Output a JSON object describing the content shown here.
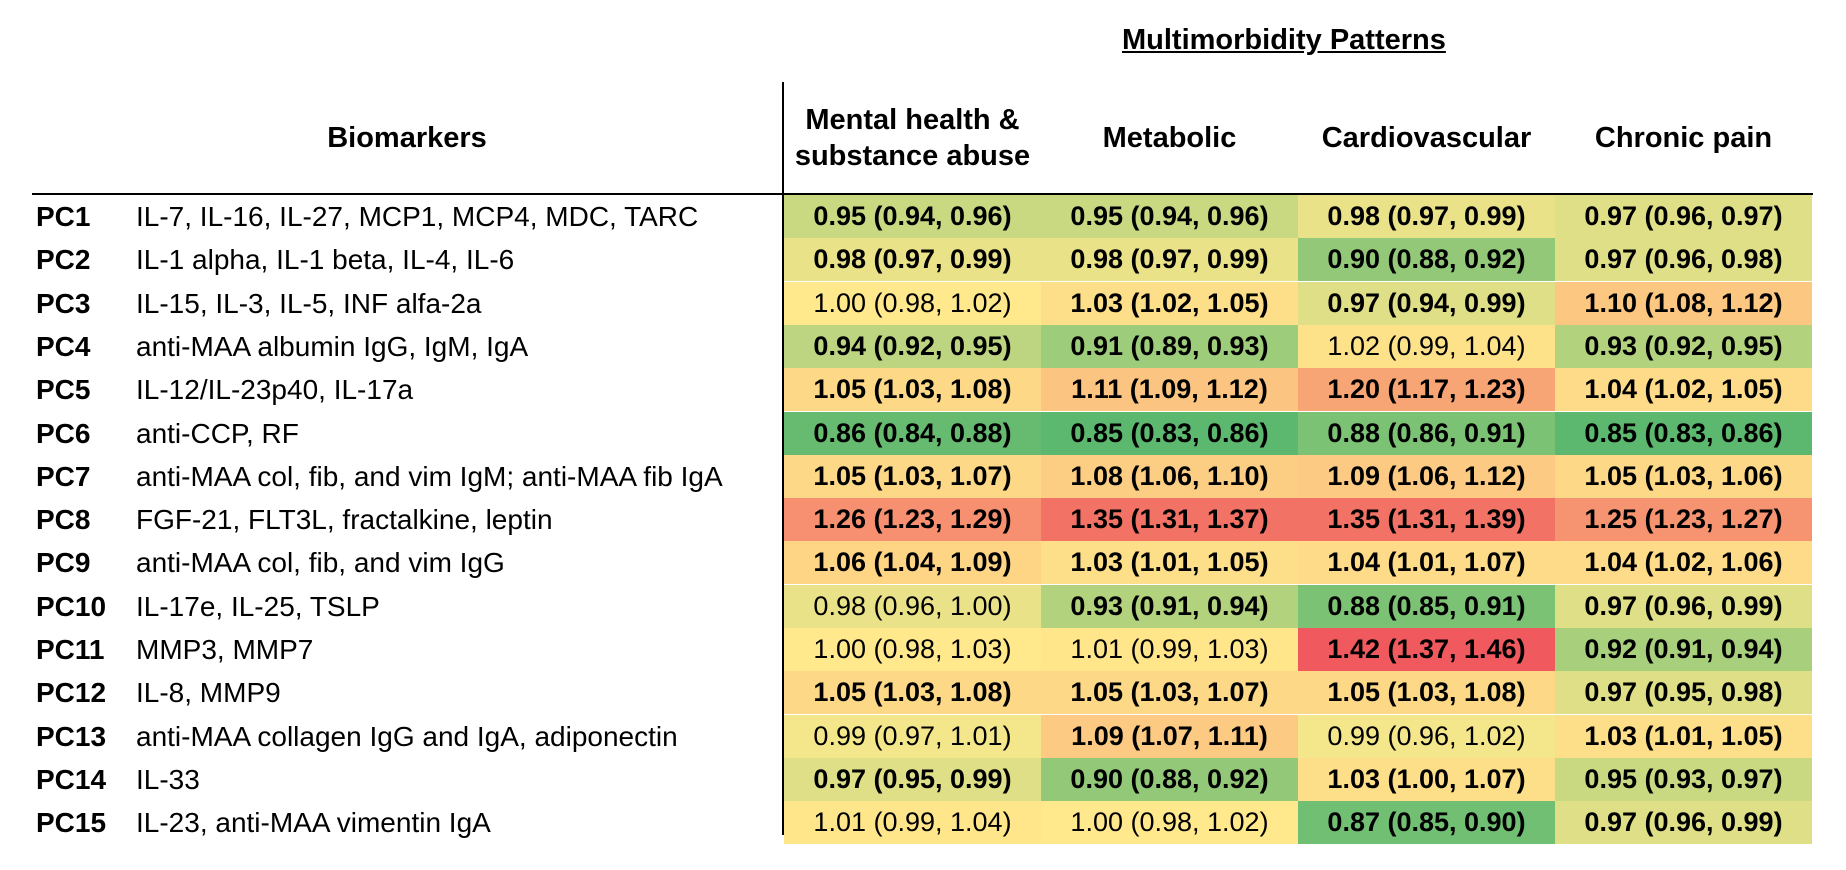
{
  "chart_data": {
    "type": "heatmap",
    "title": "Multimorbidity Patterns",
    "row_header": "Biomarkers",
    "columns": [
      "Mental health & substance abuse",
      "Metabolic",
      "Cardiovascular",
      "Chronic pain"
    ],
    "column_lines": [
      [
        "Mental health &",
        "substance abuse"
      ],
      [
        "Metabolic"
      ],
      [
        "Cardiovascular"
      ],
      [
        "Chronic pain"
      ]
    ],
    "color_scale": {
      "low": "#5bb86e",
      "mid": "#ffe98c",
      "high": "#f05a5e",
      "min_value": 0.85,
      "mid_value": 1.0,
      "max_value": 1.42
    },
    "rows": [
      {
        "pc": "PC1",
        "biomarkers": "IL-7, IL-16, IL-27, MCP1, MCP4, MDC, TARC",
        "cells": [
          {
            "text": "0.95 (0.94, 0.96)",
            "value": 0.95,
            "significant": true
          },
          {
            "text": "0.95 (0.94, 0.96)",
            "value": 0.95,
            "significant": true
          },
          {
            "text": "0.98 (0.97, 0.99)",
            "value": 0.98,
            "significant": true
          },
          {
            "text": "0.97 (0.96, 0.97)",
            "value": 0.97,
            "significant": true
          }
        ]
      },
      {
        "pc": "PC2",
        "biomarkers": "IL-1 alpha, IL-1 beta, IL-4, IL-6",
        "cells": [
          {
            "text": "0.98 (0.97, 0.99)",
            "value": 0.98,
            "significant": true
          },
          {
            "text": "0.98 (0.97, 0.99)",
            "value": 0.98,
            "significant": true
          },
          {
            "text": "0.90 (0.88, 0.92)",
            "value": 0.9,
            "significant": true
          },
          {
            "text": "0.97 (0.96, 0.98)",
            "value": 0.97,
            "significant": true
          }
        ]
      },
      {
        "pc": "PC3",
        "biomarkers": "IL-15, IL-3, IL-5, INF alfa-2a",
        "cells": [
          {
            "text": "1.00 (0.98, 1.02)",
            "value": 1.0,
            "significant": false
          },
          {
            "text": "1.03 (1.02, 1.05)",
            "value": 1.03,
            "significant": true
          },
          {
            "text": "0.97 (0.94, 0.99)",
            "value": 0.97,
            "significant": true
          },
          {
            "text": "1.10 (1.08, 1.12)",
            "value": 1.1,
            "significant": true
          }
        ]
      },
      {
        "pc": "PC4",
        "biomarkers": "anti-MAA albumin IgG, IgM, IgA",
        "cells": [
          {
            "text": "0.94 (0.92, 0.95)",
            "value": 0.94,
            "significant": true
          },
          {
            "text": "0.91 (0.89, 0.93)",
            "value": 0.91,
            "significant": true
          },
          {
            "text": "1.02 (0.99, 1.04)",
            "value": 1.02,
            "significant": false
          },
          {
            "text": "0.93 (0.92, 0.95)",
            "value": 0.93,
            "significant": true
          }
        ]
      },
      {
        "pc": "PC5",
        "biomarkers": "IL-12/IL-23p40, IL-17a",
        "cells": [
          {
            "text": "1.05 (1.03, 1.08)",
            "value": 1.05,
            "significant": true
          },
          {
            "text": "1.11 (1.09, 1.12)",
            "value": 1.11,
            "significant": true
          },
          {
            "text": "1.20 (1.17, 1.23)",
            "value": 1.2,
            "significant": true
          },
          {
            "text": "1.04 (1.02, 1.05)",
            "value": 1.04,
            "significant": true
          }
        ]
      },
      {
        "pc": "PC6",
        "biomarkers": "anti-CCP, RF",
        "cells": [
          {
            "text": "0.86 (0.84, 0.88)",
            "value": 0.86,
            "significant": true
          },
          {
            "text": "0.85 (0.83, 0.86)",
            "value": 0.85,
            "significant": true
          },
          {
            "text": "0.88 (0.86, 0.91)",
            "value": 0.88,
            "significant": true
          },
          {
            "text": "0.85 (0.83, 0.86)",
            "value": 0.85,
            "significant": true
          }
        ]
      },
      {
        "pc": "PC7",
        "biomarkers": "anti-MAA col, fib, and vim IgM; anti-MAA fib IgA",
        "cells": [
          {
            "text": "1.05 (1.03, 1.07)",
            "value": 1.05,
            "significant": true
          },
          {
            "text": "1.08 (1.06, 1.10)",
            "value": 1.08,
            "significant": true
          },
          {
            "text": "1.09 (1.06, 1.12)",
            "value": 1.09,
            "significant": true
          },
          {
            "text": "1.05 (1.03, 1.06)",
            "value": 1.05,
            "significant": true
          }
        ]
      },
      {
        "pc": "PC8",
        "biomarkers": "FGF-21, FLT3L, fractalkine, leptin",
        "cells": [
          {
            "text": "1.26 (1.23, 1.29)",
            "value": 1.26,
            "significant": true
          },
          {
            "text": "1.35 (1.31, 1.37)",
            "value": 1.35,
            "significant": true
          },
          {
            "text": "1.35 (1.31, 1.39)",
            "value": 1.35,
            "significant": true
          },
          {
            "text": "1.25 (1.23, 1.27)",
            "value": 1.25,
            "significant": true
          }
        ]
      },
      {
        "pc": "PC9",
        "biomarkers": "anti-MAA col, fib, and vim IgG",
        "cells": [
          {
            "text": "1.06 (1.04, 1.09)",
            "value": 1.06,
            "significant": true
          },
          {
            "text": "1.03 (1.01, 1.05)",
            "value": 1.03,
            "significant": true
          },
          {
            "text": "1.04 (1.01, 1.07)",
            "value": 1.04,
            "significant": true
          },
          {
            "text": "1.04 (1.02, 1.06)",
            "value": 1.04,
            "significant": true
          }
        ]
      },
      {
        "pc": "PC10",
        "biomarkers": "IL-17e, IL-25, TSLP",
        "cells": [
          {
            "text": "0.98 (0.96, 1.00)",
            "value": 0.98,
            "significant": false
          },
          {
            "text": "0.93 (0.91, 0.94)",
            "value": 0.93,
            "significant": true
          },
          {
            "text": "0.88 (0.85, 0.91)",
            "value": 0.88,
            "significant": true
          },
          {
            "text": "0.97 (0.96, 0.99)",
            "value": 0.97,
            "significant": true
          }
        ]
      },
      {
        "pc": "PC11",
        "biomarkers": "MMP3, MMP7",
        "cells": [
          {
            "text": "1.00 (0.98, 1.03)",
            "value": 1.0,
            "significant": false
          },
          {
            "text": "1.01 (0.99, 1.03)",
            "value": 1.01,
            "significant": false
          },
          {
            "text": "1.42 (1.37, 1.46)",
            "value": 1.42,
            "significant": true
          },
          {
            "text": "0.92 (0.91, 0.94)",
            "value": 0.92,
            "significant": true
          }
        ]
      },
      {
        "pc": "PC12",
        "biomarkers": "IL-8, MMP9",
        "cells": [
          {
            "text": "1.05 (1.03, 1.08)",
            "value": 1.05,
            "significant": true
          },
          {
            "text": "1.05 (1.03, 1.07)",
            "value": 1.05,
            "significant": true
          },
          {
            "text": "1.05 (1.03, 1.08)",
            "value": 1.05,
            "significant": true
          },
          {
            "text": "0.97 (0.95, 0.98)",
            "value": 0.97,
            "significant": true
          }
        ]
      },
      {
        "pc": "PC13",
        "biomarkers": "anti-MAA collagen IgG and IgA, adiponectin",
        "cells": [
          {
            "text": "0.99 (0.97, 1.01)",
            "value": 0.99,
            "significant": false
          },
          {
            "text": "1.09 (1.07, 1.11)",
            "value": 1.09,
            "significant": true
          },
          {
            "text": "0.99 (0.96, 1.02)",
            "value": 0.99,
            "significant": false
          },
          {
            "text": "1.03 (1.01, 1.05)",
            "value": 1.03,
            "significant": true
          }
        ]
      },
      {
        "pc": "PC14",
        "biomarkers": "IL-33",
        "cells": [
          {
            "text": "0.97 (0.95, 0.99)",
            "value": 0.97,
            "significant": true
          },
          {
            "text": "0.90 (0.88, 0.92)",
            "value": 0.9,
            "significant": true
          },
          {
            "text": "1.03 (1.00, 1.07)",
            "value": 1.03,
            "significant": true
          },
          {
            "text": "0.95 (0.93, 0.97)",
            "value": 0.95,
            "significant": true
          }
        ]
      },
      {
        "pc": "PC15",
        "biomarkers": "IL-23, anti-MAA vimentin IgA",
        "cells": [
          {
            "text": "1.01 (0.99, 1.04)",
            "value": 1.01,
            "significant": false
          },
          {
            "text": "1.00 (0.98, 1.02)",
            "value": 1.0,
            "significant": false
          },
          {
            "text": "0.87 (0.85, 0.90)",
            "value": 0.87,
            "significant": true
          },
          {
            "text": "0.97 (0.96, 0.99)",
            "value": 0.97,
            "significant": true
          }
        ]
      }
    ]
  }
}
